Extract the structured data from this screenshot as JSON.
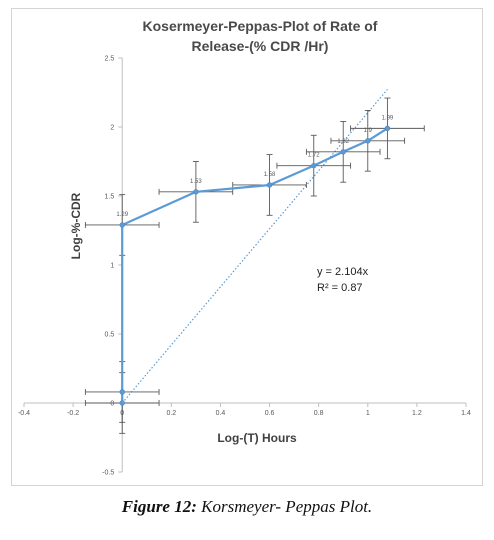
{
  "chart_data": {
    "type": "scatter",
    "title_line1": "Kosermeyer-Peppas-Plot of Rate of",
    "title_line2": "Release-(% CDR /Hr)",
    "xlabel": "Log-(T) Hours",
    "ylabel": "Log-%-CDR",
    "xlim": [
      -0.4,
      1.4
    ],
    "ylim": [
      -0.5,
      2.5
    ],
    "x_ticks": [
      -0.4,
      -0.2,
      0,
      0.2,
      0.4,
      0.6,
      0.8,
      1,
      1.2,
      1.4
    ],
    "x_tick_labels": [
      "-0.4",
      "-0.2",
      "0",
      "0.2",
      "0.4",
      "0.6",
      "0.8",
      "1",
      "1.2",
      "1.4"
    ],
    "y_ticks": [
      -0.5,
      0,
      0.5,
      1,
      1.5,
      2,
      2.5
    ],
    "y_tick_labels": [
      "-0.5",
      "0",
      "0.5",
      "1",
      "1.5",
      "2",
      "2.5"
    ],
    "series": [
      {
        "color": "#5b9bd5",
        "points": [
          {
            "x": 0,
            "y": 0,
            "label": ""
          },
          {
            "x": 0,
            "y": 0.08,
            "label": ""
          },
          {
            "x": 0,
            "y": 1.29,
            "label": "1.29"
          },
          {
            "x": 0.3,
            "y": 1.53,
            "label": "1.53"
          },
          {
            "x": 0.6,
            "y": 1.58,
            "label": "1.58"
          },
          {
            "x": 0.78,
            "y": 1.72,
            "label": "1.72"
          },
          {
            "x": 0.9,
            "y": 1.82,
            "label": "1.82"
          },
          {
            "x": 1.0,
            "y": 1.9,
            "label": "1.9"
          },
          {
            "x": 1.08,
            "y": 1.99,
            "label": "1.99"
          }
        ],
        "x_error": 0.15,
        "y_error": 0.22
      }
    ],
    "trendline": {
      "slope": 2.104,
      "intercept": 0,
      "x_range": [
        0,
        1.08
      ],
      "style": "dotted",
      "color": "#5b9bd5"
    },
    "equation": "y = 2.104x",
    "r_squared": "R² = 0.87",
    "grid": false,
    "legend": "none"
  },
  "caption": {
    "label": "Figure 12:",
    "text": " Korsmeyer- Peppas Plot."
  }
}
